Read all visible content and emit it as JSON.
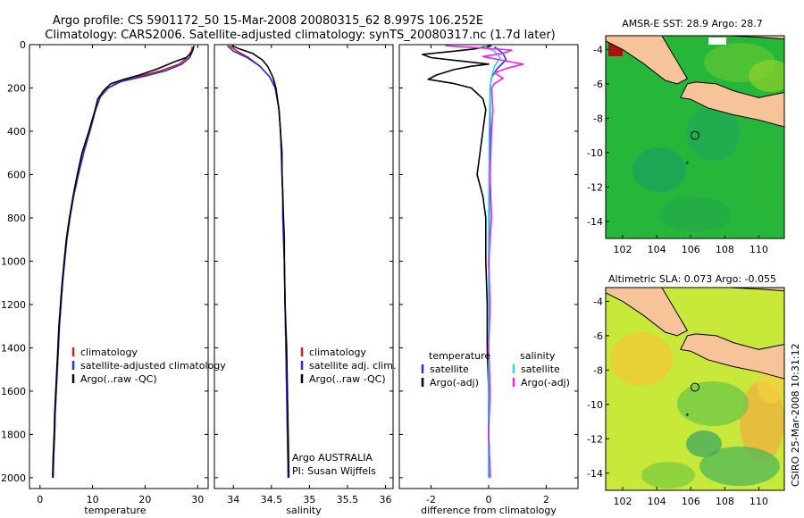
{
  "header": {
    "line1": "Argo profile: CS 5901172_50 15-Mar-2008 20080315_62 8.997S 106.252E",
    "line2": "Climatology: CARS2006. Satellite-adjusted climatology: synTS_20080317.nc (1.7d later)"
  },
  "credit": "CSIRO 25-Mar-2008 10:31:12",
  "colors": {
    "red": "#d42020",
    "blue": "#2233dd",
    "black": "#000000",
    "cyan": "#22dddd",
    "magenta": "#ee22ee",
    "land": "#f7c49a",
    "sst_green": "#22bb33",
    "sla_yellow": "#ccee33"
  },
  "chart_data": [
    {
      "type": "line",
      "id": "temperature",
      "xlabel": "temperature",
      "xlim": [
        -2,
        32
      ],
      "ylim": [
        2050,
        0
      ],
      "xticks": [
        0,
        10,
        20,
        30
      ],
      "yticks": [
        0,
        200,
        400,
        600,
        800,
        1000,
        1200,
        1400,
        1600,
        1800,
        2000
      ],
      "legend": [
        "climatology",
        "satellite-adjusted climatology",
        "Argo(..raw -QC)"
      ],
      "series": [
        {
          "name": "climatology",
          "color": "red",
          "points": [
            [
              29.0,
              10
            ],
            [
              28.8,
              30
            ],
            [
              28.0,
              60
            ],
            [
              26.5,
              90
            ],
            [
              23,
              120
            ],
            [
              19,
              145
            ],
            [
              15,
              170
            ],
            [
              13,
              200
            ],
            [
              11.5,
              240
            ],
            [
              10.6,
              300
            ],
            [
              9.5,
              400
            ],
            [
              8.3,
              500
            ],
            [
              7.3,
              600
            ],
            [
              6.4,
              700
            ],
            [
              5.7,
              800
            ],
            [
              5.1,
              900
            ],
            [
              4.7,
              1000
            ],
            [
              4.3,
              1100
            ],
            [
              4.0,
              1200
            ],
            [
              3.7,
              1300
            ],
            [
              3.5,
              1400
            ],
            [
              3.3,
              1500
            ],
            [
              3.1,
              1600
            ],
            [
              2.9,
              1700
            ],
            [
              2.8,
              1800
            ],
            [
              2.6,
              1900
            ],
            [
              2.5,
              2000
            ]
          ]
        },
        {
          "name": "satellite-adjusted climatology",
          "color": "blue",
          "points": [
            [
              29.2,
              10
            ],
            [
              29.0,
              30
            ],
            [
              28.5,
              60
            ],
            [
              27,
              90
            ],
            [
              24,
              120
            ],
            [
              20,
              145
            ],
            [
              15.5,
              170
            ],
            [
              13,
              200
            ],
            [
              11.5,
              240
            ],
            [
              10.6,
              300
            ],
            [
              9.5,
              400
            ],
            [
              8.3,
              500
            ],
            [
              7.3,
              600
            ],
            [
              6.4,
              700
            ],
            [
              5.7,
              800
            ],
            [
              5.1,
              900
            ],
            [
              4.7,
              1000
            ],
            [
              4.3,
              1100
            ],
            [
              4.0,
              1200
            ],
            [
              3.7,
              1300
            ],
            [
              3.5,
              1400
            ],
            [
              3.3,
              1500
            ],
            [
              3.1,
              1600
            ],
            [
              2.9,
              1700
            ],
            [
              2.8,
              1800
            ],
            [
              2.6,
              1900
            ],
            [
              2.5,
              2000
            ]
          ]
        },
        {
          "name": "Argo(..raw -QC)",
          "color": "black",
          "points": [
            [
              29.3,
              5
            ],
            [
              29.1,
              25
            ],
            [
              28.6,
              45
            ],
            [
              27.8,
              60
            ],
            [
              25.5,
              80
            ],
            [
              22.5,
              110
            ],
            [
              19,
              140
            ],
            [
              16,
              160
            ],
            [
              13.5,
              180
            ],
            [
              12.2,
              210
            ],
            [
              11,
              250
            ],
            [
              10.5,
              300
            ],
            [
              9.3,
              400
            ],
            [
              8.0,
              500
            ],
            [
              7.1,
              600
            ],
            [
              6.3,
              700
            ],
            [
              5.6,
              800
            ],
            [
              5.0,
              900
            ],
            [
              4.6,
              1000
            ],
            [
              4.2,
              1100
            ],
            [
              3.9,
              1200
            ],
            [
              3.6,
              1300
            ],
            [
              3.4,
              1400
            ],
            [
              3.2,
              1500
            ],
            [
              3.0,
              1600
            ],
            [
              2.8,
              1700
            ],
            [
              2.7,
              1800
            ],
            [
              2.5,
              1900
            ],
            [
              2.4,
              2000
            ]
          ]
        }
      ]
    },
    {
      "type": "line",
      "id": "salinity",
      "xlabel": "salinity",
      "xlim": [
        33.75,
        36.1
      ],
      "ylim": [
        2050,
        0
      ],
      "xticks": [
        34,
        34.5,
        35,
        35.5,
        36
      ],
      "xtick_labels": [
        "34",
        "34.5",
        "35",
        "35.5",
        "36"
      ],
      "legend": [
        "climatology",
        "satellite adj. clim.",
        "Argo(..raw -QC)"
      ],
      "annotation": [
        "Argo AUSTRALIA",
        "PI: Susan Wijffels"
      ],
      "series": [
        {
          "name": "climatology",
          "color": "red",
          "points": [
            [
              33.95,
              5
            ],
            [
              34.05,
              30
            ],
            [
              34.2,
              60
            ],
            [
              34.35,
              100
            ],
            [
              34.48,
              150
            ],
            [
              34.55,
              200
            ],
            [
              34.6,
              300
            ],
            [
              34.62,
              400
            ],
            [
              34.63,
              500
            ],
            [
              34.64,
              600
            ],
            [
              34.65,
              700
            ],
            [
              34.65,
              800
            ],
            [
              34.66,
              900
            ],
            [
              34.67,
              1000
            ],
            [
              34.68,
              1200
            ],
            [
              34.69,
              1400
            ],
            [
              34.7,
              1600
            ],
            [
              34.71,
              1800
            ],
            [
              34.72,
              2000
            ]
          ]
        },
        {
          "name": "satellite adj. clim.",
          "color": "blue",
          "points": [
            [
              33.92,
              5
            ],
            [
              34.0,
              30
            ],
            [
              34.18,
              60
            ],
            [
              34.35,
              100
            ],
            [
              34.48,
              150
            ],
            [
              34.55,
              200
            ],
            [
              34.6,
              300
            ],
            [
              34.62,
              400
            ],
            [
              34.63,
              500
            ],
            [
              34.64,
              600
            ],
            [
              34.65,
              700
            ],
            [
              34.65,
              800
            ],
            [
              34.66,
              900
            ],
            [
              34.67,
              1000
            ],
            [
              34.68,
              1200
            ],
            [
              34.69,
              1400
            ],
            [
              34.7,
              1600
            ],
            [
              34.71,
              1800
            ],
            [
              34.72,
              2000
            ]
          ]
        },
        {
          "name": "Argo(..raw -QC)",
          "color": "black",
          "points": [
            [
              33.98,
              5
            ],
            [
              34.08,
              20
            ],
            [
              34.25,
              40
            ],
            [
              34.38,
              70
            ],
            [
              34.45,
              100
            ],
            [
              34.52,
              150
            ],
            [
              34.56,
              200
            ],
            [
              34.6,
              300
            ],
            [
              34.62,
              400
            ],
            [
              34.64,
              500
            ],
            [
              34.64,
              600
            ],
            [
              34.65,
              700
            ],
            [
              34.66,
              800
            ],
            [
              34.67,
              900
            ],
            [
              34.67,
              1000
            ],
            [
              34.68,
              1200
            ],
            [
              34.7,
              1400
            ],
            [
              34.71,
              1600
            ],
            [
              34.72,
              1800
            ],
            [
              34.73,
              2000
            ]
          ]
        }
      ]
    },
    {
      "type": "line",
      "id": "difference",
      "xlabel": "difference from climatology",
      "xlim": [
        -3.1,
        3.1
      ],
      "ylim": [
        2050,
        0
      ],
      "xticks": [
        -2,
        0,
        2
      ],
      "legend_temperature": {
        "heading": "temperature",
        "items": [
          "satellite",
          "Argo(-adj)"
        ]
      },
      "legend_salinity": {
        "heading": "salinity",
        "items": [
          "satellite",
          "Argo(-adj)"
        ]
      },
      "series": [
        {
          "name": "temperature satellite",
          "color": "blue",
          "points": [
            [
              0.2,
              10
            ],
            [
              0.5,
              40
            ],
            [
              0.6,
              70
            ],
            [
              0.3,
              110
            ],
            [
              0.1,
              150
            ],
            [
              0.05,
              200
            ],
            [
              0.05,
              400
            ],
            [
              0.02,
              800
            ],
            [
              0.01,
              1200
            ],
            [
              0.0,
              2000
            ]
          ]
        },
        {
          "name": "temperature Argo(-adj)",
          "color": "black",
          "points": [
            [
              0.1,
              5
            ],
            [
              -0.5,
              20
            ],
            [
              -1.2,
              30
            ],
            [
              -2.3,
              45
            ],
            [
              -2.0,
              60
            ],
            [
              -1.0,
              75
            ],
            [
              0.0,
              90
            ],
            [
              -0.6,
              100
            ],
            [
              -1.2,
              115
            ],
            [
              -1.8,
              140
            ],
            [
              -2.1,
              160
            ],
            [
              -1.2,
              180
            ],
            [
              -0.6,
              200
            ],
            [
              -0.2,
              250
            ],
            [
              -0.1,
              300
            ],
            [
              -0.2,
              400
            ],
            [
              -0.3,
              500
            ],
            [
              -0.4,
              600
            ],
            [
              -0.2,
              700
            ],
            [
              -0.1,
              800
            ],
            [
              -0.1,
              900
            ],
            [
              -0.1,
              1000
            ],
            [
              -0.05,
              1200
            ],
            [
              -0.05,
              1400
            ],
            [
              0.0,
              1600
            ],
            [
              0.0,
              1800
            ],
            [
              0.05,
              2000
            ]
          ]
        },
        {
          "name": "salinity satellite",
          "color": "cyan",
          "points": [
            [
              -0.2,
              5
            ],
            [
              0.2,
              30
            ],
            [
              0.4,
              60
            ],
            [
              0.2,
              100
            ],
            [
              0.1,
              150
            ],
            [
              0.05,
              200
            ],
            [
              0.02,
              400
            ],
            [
              0.0,
              800
            ],
            [
              0.0,
              1200
            ],
            [
              0.0,
              2000
            ]
          ]
        },
        {
          "name": "salinity Argo(-adj)",
          "color": "magenta",
          "points": [
            [
              -1.5,
              5
            ],
            [
              -0.3,
              15
            ],
            [
              0.8,
              25
            ],
            [
              0.5,
              40
            ],
            [
              -0.2,
              55
            ],
            [
              0.4,
              70
            ],
            [
              1.2,
              90
            ],
            [
              0.6,
              110
            ],
            [
              0.2,
              130
            ],
            [
              0.5,
              155
            ],
            [
              0.2,
              180
            ],
            [
              0.1,
              200
            ],
            [
              0.15,
              300
            ],
            [
              0.1,
              400
            ],
            [
              0.05,
              600
            ],
            [
              0.1,
              800
            ],
            [
              0.0,
              1000
            ],
            [
              0.05,
              1200
            ],
            [
              0.0,
              1400
            ],
            [
              0.05,
              1600
            ],
            [
              0.0,
              1800
            ],
            [
              0.05,
              2000
            ]
          ]
        }
      ]
    },
    {
      "type": "heatmap",
      "id": "sst_map",
      "title": "AMSR-E SST: 28.9 Argo: 28.7",
      "xlim": [
        101,
        111.5
      ],
      "ylim": [
        -15,
        -3.2
      ],
      "xticks": [
        102,
        104,
        106,
        108,
        110
      ],
      "yticks": [
        -4,
        -6,
        -8,
        -10,
        -12,
        -14
      ],
      "argo_position": [
        106.25,
        -9.0
      ]
    },
    {
      "type": "heatmap",
      "id": "sla_map",
      "title": "Altimetric SLA: 0.073 Argo: -0.055",
      "xlim": [
        101,
        111.5
      ],
      "ylim": [
        -15,
        -3.2
      ],
      "xticks": [
        102,
        104,
        106,
        108,
        110
      ],
      "yticks": [
        -4,
        -6,
        -8,
        -10,
        -12,
        -14
      ],
      "argo_position": [
        106.25,
        -9.0
      ]
    }
  ]
}
